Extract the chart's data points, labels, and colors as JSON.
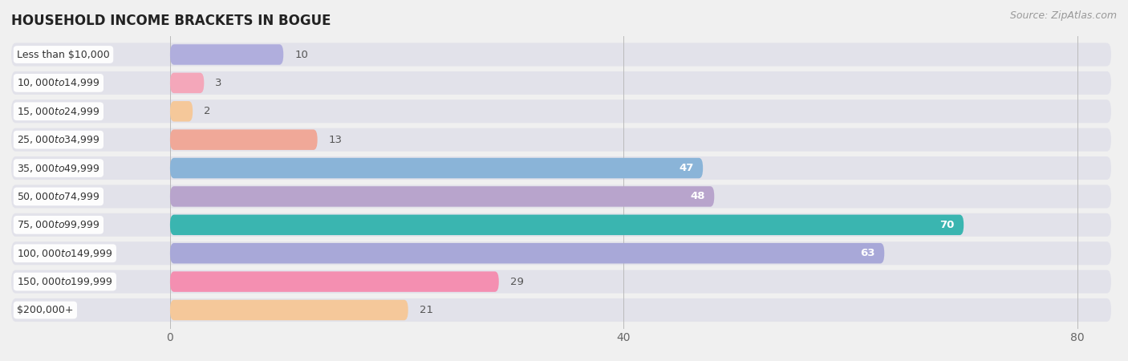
{
  "title": "HOUSEHOLD INCOME BRACKETS IN BOGUE",
  "source": "Source: ZipAtlas.com",
  "categories": [
    "Less than $10,000",
    "$10,000 to $14,999",
    "$15,000 to $24,999",
    "$25,000 to $34,999",
    "$35,000 to $49,999",
    "$50,000 to $74,999",
    "$75,000 to $99,999",
    "$100,000 to $149,999",
    "$150,000 to $199,999",
    "$200,000+"
  ],
  "values": [
    10,
    3,
    2,
    13,
    47,
    48,
    70,
    63,
    29,
    21
  ],
  "bar_colors": [
    "#b0aedd",
    "#f4a7ba",
    "#f5c89a",
    "#f0a898",
    "#8ab4d8",
    "#b8a4cc",
    "#3ab5b0",
    "#a8a8d8",
    "#f48fb1",
    "#f5c89a"
  ],
  "row_bg_color": "#e8e8ee",
  "xlim_max": 83,
  "xticks": [
    0,
    40,
    80
  ],
  "background_color": "#f0f0f0",
  "label_color_dark": "#555555",
  "label_color_light": "#ffffff",
  "title_fontsize": 12,
  "source_fontsize": 9,
  "tick_fontsize": 10,
  "bar_label_fontsize": 9.5,
  "category_label_fontsize": 9
}
